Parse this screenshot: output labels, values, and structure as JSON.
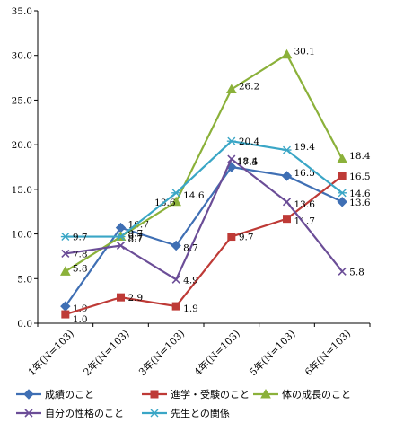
{
  "chart_data": {
    "type": "line",
    "categories": [
      "1年(N=103)",
      "2年(N=103)",
      "3年(N=103)",
      "4年(N=103)",
      "5年(N=103)",
      "6年(N=103)"
    ],
    "ylim": [
      0,
      35
    ],
    "yticks": [
      "0.0",
      "5.0",
      "10.0",
      "15.0",
      "20.0",
      "25.0",
      "30.0",
      "35.0"
    ],
    "grid": false,
    "legend_position": "bottom",
    "series": [
      {
        "name": "成績のこと",
        "color": "#3f6fb4",
        "marker": "diamond",
        "values": [
          1.9,
          10.7,
          8.7,
          17.5,
          16.5,
          13.6
        ],
        "labels": [
          "1.9",
          "10.7",
          "8.7",
          "17.5",
          "16.5",
          "13.6"
        ]
      },
      {
        "name": "進学・受験のこと",
        "color": "#be3a36",
        "marker": "square",
        "values": [
          1.0,
          2.9,
          1.9,
          9.7,
          11.7,
          16.5
        ],
        "labels": [
          "1.0",
          "2.9",
          "1.9",
          "9.7",
          "11.7",
          "16.5"
        ]
      },
      {
        "name": "体の成長のこと",
        "color": "#8bb13a",
        "marker": "triangle",
        "values": [
          5.8,
          9.7,
          13.6,
          26.2,
          30.1,
          18.4
        ],
        "labels": [
          "5.8",
          "9.7",
          "13.6",
          "26.2",
          "30.1",
          "18.4"
        ]
      },
      {
        "name": "自分の性格のこと",
        "color": "#6b4d97",
        "marker": "x",
        "values": [
          7.8,
          8.7,
          4.9,
          18.4,
          13.6,
          5.8
        ],
        "labels": [
          "7.8",
          "8.7",
          "4.9",
          "18.4",
          "13.6",
          "5.8"
        ]
      },
      {
        "name": "先生との関係",
        "color": "#3aa6c6",
        "marker": "star",
        "values": [
          9.7,
          9.7,
          14.6,
          20.4,
          19.4,
          14.6
        ],
        "labels": [
          "9.7",
          "9.7",
          "14.6",
          "20.4",
          "19.4",
          "14.6"
        ]
      }
    ]
  }
}
